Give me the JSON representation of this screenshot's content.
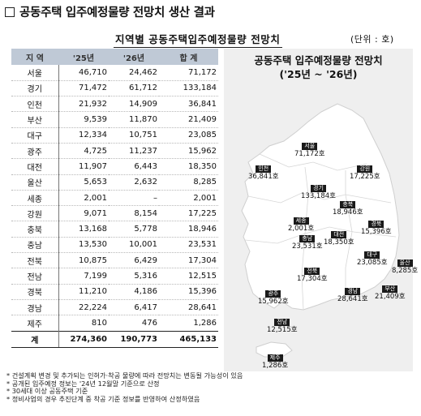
{
  "heading": "공동주택 입주예정물량 전망치 생산 결과",
  "subtitle": "지역별 공동주택입주예정물량 전망치",
  "unit": "(단위 : 호)",
  "table": {
    "headers": [
      "지 역",
      "'25년",
      "'26년",
      "합 계"
    ],
    "rows": [
      [
        "서울",
        "46,710",
        "24,462",
        "71,172"
      ],
      [
        "경기",
        "71,472",
        "61,712",
        "133,184"
      ],
      [
        "인천",
        "21,932",
        "14,909",
        "36,841"
      ],
      [
        "부산",
        "9,539",
        "11,870",
        "21,409"
      ],
      [
        "대구",
        "12,334",
        "10,751",
        "23,085"
      ],
      [
        "광주",
        "4,725",
        "11,237",
        "15,962"
      ],
      [
        "대전",
        "11,907",
        "6,443",
        "18,350"
      ],
      [
        "울산",
        "5,653",
        "2,632",
        "8,285"
      ],
      [
        "세종",
        "2,001",
        "–",
        "2,001"
      ],
      [
        "강원",
        "9,071",
        "8,154",
        "17,225"
      ],
      [
        "충북",
        "13,168",
        "5,778",
        "18,946"
      ],
      [
        "충남",
        "13,530",
        "10,001",
        "23,531"
      ],
      [
        "전북",
        "10,875",
        "6,429",
        "17,304"
      ],
      [
        "전남",
        "7,199",
        "5,316",
        "12,515"
      ],
      [
        "경북",
        "11,210",
        "4,186",
        "15,396"
      ],
      [
        "경남",
        "22,224",
        "6,417",
        "28,641"
      ],
      [
        "제주",
        "810",
        "476",
        "1,286"
      ]
    ],
    "total": [
      "계",
      "274,360",
      "190,773",
      "465,133"
    ]
  },
  "map": {
    "title_line1": "공동주택 입주예정물량 전망치",
    "title_line2": "('25년 ~ '26년)",
    "labels": [
      {
        "id": "seoul",
        "name": "서울",
        "value": "71,172호"
      },
      {
        "id": "incheon",
        "name": "인천",
        "value": "36,841호"
      },
      {
        "id": "gangwon",
        "name": "강원",
        "value": "17,225호"
      },
      {
        "id": "gyeonggi",
        "name": "경기",
        "value": "133,184호"
      },
      {
        "id": "chungbuk",
        "name": "충북",
        "value": "18,946호"
      },
      {
        "id": "sejong",
        "name": "세종",
        "value": "2,001호"
      },
      {
        "id": "gyeongbuk",
        "name": "경북",
        "value": "15,396호"
      },
      {
        "id": "chungnam",
        "name": "충남",
        "value": "23,531호"
      },
      {
        "id": "daejeon",
        "name": "대전",
        "value": "18,350호"
      },
      {
        "id": "daegu",
        "name": "대구",
        "value": "23,085호"
      },
      {
        "id": "jeonbuk",
        "name": "전북",
        "value": "17,304호"
      },
      {
        "id": "ulsan",
        "name": "울산",
        "value": "8,285호"
      },
      {
        "id": "gwangju",
        "name": "광주",
        "value": "15,962호"
      },
      {
        "id": "gyeongnam",
        "name": "경남",
        "value": "28,641호"
      },
      {
        "id": "busan",
        "name": "부산",
        "value": "21,409호"
      },
      {
        "id": "jeonnam",
        "name": "전남",
        "value": "12,515호"
      },
      {
        "id": "jeju",
        "name": "제주",
        "value": "1,286호"
      }
    ]
  },
  "notes": [
    "* 건설계획 변경 및 추가되는 인허가·착공 물량에 따라 전망치는 변동될 가능성이 있음",
    "* 공개된 입주예정 정보는 '24년 12월말 기준으로 산정",
    "* 30세대 이상 공동주택 기준",
    "* 정비사업의 경우 추진단계 중 착공 기준 정보를 반영하여 산정하였음"
  ]
}
